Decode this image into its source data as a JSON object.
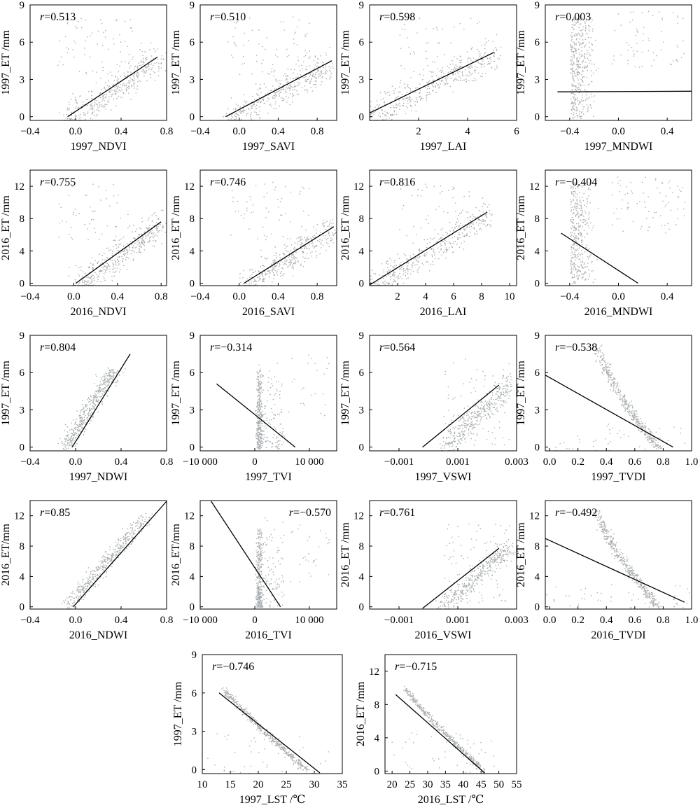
{
  "chart_data": [
    {
      "type": "scatter",
      "xlabel": "1997_NDVI",
      "ylabel": "1997_ET /mm",
      "r_label": "r",
      "r_value": "=0.513",
      "xlim": [
        -0.4,
        0.8
      ],
      "ylim": [
        -0.3,
        9
      ],
      "xticks": [
        -0.4,
        0,
        0.4,
        0.8
      ],
      "xtick_labels": [
        "−0.4",
        "0.0",
        "0.4",
        "0.8"
      ],
      "yticks": [
        0,
        3,
        6,
        9
      ],
      "ytick_labels": [
        "0",
        "3",
        "6",
        "9"
      ],
      "fit": [
        [
          -0.07,
          0
        ],
        [
          0.72,
          4.8
        ]
      ],
      "cloud": "linear-up"
    },
    {
      "type": "scatter",
      "xlabel": "1997_SAVI",
      "ylabel": "1997_ET /mm",
      "r_label": "r",
      "r_value": "=0.510",
      "xlim": [
        -0.4,
        1.0
      ],
      "ylim": [
        -0.3,
        9
      ],
      "xticks": [
        -0.4,
        0,
        0.4,
        0.8
      ],
      "xtick_labels": [
        "−0.4",
        "0.0",
        "0.4",
        "0.8"
      ],
      "yticks": [
        0,
        3,
        6,
        9
      ],
      "ytick_labels": [
        "0",
        "3",
        "6",
        "9"
      ],
      "fit": [
        [
          -0.14,
          0
        ],
        [
          0.95,
          4.5
        ]
      ],
      "cloud": "linear-up"
    },
    {
      "type": "scatter",
      "xlabel": "1997_LAI",
      "ylabel": "1997_ET /mm",
      "r_label": "r",
      "r_value": "=0.598",
      "xlim": [
        0,
        6
      ],
      "ylim": [
        -0.3,
        9
      ],
      "xticks": [
        2,
        4,
        6
      ],
      "xtick_labels": [
        "2",
        "4",
        "6"
      ],
      "yticks": [
        0,
        3,
        6,
        9
      ],
      "ytick_labels": [
        "0",
        "3",
        "6",
        "9"
      ],
      "fit": [
        [
          0,
          0.3
        ],
        [
          5.1,
          5.2
        ]
      ],
      "cloud": "linear-up"
    },
    {
      "type": "scatter",
      "xlabel": "1997_MNDWI",
      "ylabel": "1997_ET /mm",
      "r_label": "r",
      "r_value": "=0.003",
      "xlim": [
        -0.6,
        0.6
      ],
      "ylim": [
        -0.3,
        9
      ],
      "xticks": [
        -0.4,
        0,
        0.4
      ],
      "xtick_labels": [
        "−0.4",
        "0.0",
        "0.4"
      ],
      "yticks": [
        0,
        3,
        6,
        9
      ],
      "ytick_labels": [
        "0",
        "3",
        "6",
        "9"
      ],
      "fit": [
        [
          -0.5,
          2.0
        ],
        [
          0.6,
          2.05
        ]
      ],
      "cloud": "vertical-left"
    },
    {
      "type": "scatter",
      "xlabel": "2016_NDVI",
      "ylabel": "2016_ET /mm",
      "r_label": "r",
      "r_value": "=0.755",
      "xlim": [
        -0.4,
        0.85
      ],
      "ylim": [
        -0.3,
        14
      ],
      "xticks": [
        -0.4,
        0,
        0.4,
        0.8
      ],
      "xtick_labels": [
        "−0.4",
        "0.0",
        "0.4",
        "0.8"
      ],
      "yticks": [
        0,
        4,
        8,
        12
      ],
      "ytick_labels": [
        "0",
        "4",
        "8",
        "12"
      ],
      "fit": [
        [
          0.02,
          0
        ],
        [
          0.8,
          7.6
        ]
      ],
      "cloud": "linear-up"
    },
    {
      "type": "scatter",
      "xlabel": "2016_SAVI",
      "ylabel": "2016_ET /mm",
      "r_label": "r",
      "r_value": "=0.746",
      "xlim": [
        -0.4,
        1.0
      ],
      "ylim": [
        -0.3,
        14
      ],
      "xticks": [
        -0.4,
        0,
        0.4,
        0.8
      ],
      "xtick_labels": [
        "−0.4",
        "0.0",
        "0.4",
        "0.8"
      ],
      "yticks": [
        0,
        4,
        8,
        12
      ],
      "ytick_labels": [
        "0",
        "4",
        "8",
        "12"
      ],
      "fit": [
        [
          0.05,
          0
        ],
        [
          0.97,
          7.0
        ]
      ],
      "cloud": "linear-up"
    },
    {
      "type": "scatter",
      "xlabel": "2016_LAI",
      "ylabel": "2016_ET /mm",
      "r_label": "r",
      "r_value": "=0.816",
      "xlim": [
        0,
        10.5
      ],
      "ylim": [
        -0.3,
        14
      ],
      "xticks": [
        2,
        4,
        6,
        8,
        10
      ],
      "xtick_labels": [
        "2",
        "4",
        "6",
        "8",
        "10"
      ],
      "yticks": [
        0,
        4,
        8,
        12
      ],
      "ytick_labels": [
        "0",
        "4",
        "8",
        "12"
      ],
      "fit": [
        [
          0,
          -0.3
        ],
        [
          8.4,
          8.8
        ]
      ],
      "cloud": "linear-up"
    },
    {
      "type": "scatter",
      "xlabel": "2016_MNDWI",
      "ylabel": "2016_ET /mm",
      "r_label": "r",
      "r_value": "=−0.404",
      "xlim": [
        -0.6,
        0.6
      ],
      "ylim": [
        -0.3,
        14
      ],
      "xticks": [
        -0.4,
        0,
        0.4
      ],
      "xtick_labels": [
        "−0.4",
        "0.0",
        "0.4"
      ],
      "yticks": [
        0,
        4,
        8,
        12
      ],
      "ytick_labels": [
        "0",
        "4",
        "8",
        "12"
      ],
      "fit": [
        [
          -0.47,
          6.2
        ],
        [
          0.16,
          0
        ]
      ],
      "cloud": "vertical-left"
    },
    {
      "type": "scatter",
      "xlabel": "1997_NDWI",
      "ylabel": "1997_ET /mm",
      "r_label": "r",
      "r_value": "=0.804",
      "xlim": [
        -0.4,
        0.8
      ],
      "ylim": [
        -0.3,
        9
      ],
      "xticks": [
        -0.4,
        0,
        0.4,
        0.8
      ],
      "xtick_labels": [
        "−0.4",
        "0.0",
        "0.4",
        "0.8"
      ],
      "yticks": [
        0,
        3,
        6,
        9
      ],
      "ytick_labels": [
        "0",
        "3",
        "6",
        "9"
      ],
      "fit": [
        [
          -0.03,
          0
        ],
        [
          0.48,
          7.5
        ]
      ],
      "cloud": "steep-up"
    },
    {
      "type": "scatter",
      "xlabel": "1997_TVI",
      "ylabel": "1997_ET /mm",
      "r_label": "r",
      "r_value": "=−0.314",
      "xlim": [
        -10000,
        15000
      ],
      "ylim": [
        -0.3,
        9
      ],
      "xticks": [
        -10000,
        0,
        10000
      ],
      "xtick_labels": [
        "−10 000",
        "0",
        "10 000"
      ],
      "yticks": [
        0,
        3,
        6,
        9
      ],
      "ytick_labels": [
        "0",
        "3",
        "6",
        "9"
      ],
      "fit": [
        [
          -7000,
          5.1
        ],
        [
          7400,
          0
        ]
      ],
      "cloud": "spike"
    },
    {
      "type": "scatter",
      "xlabel": "1997_VSWI",
      "ylabel": "1997_ET /mm",
      "r_label": "r",
      "r_value": "=0.564",
      "xlim": [
        -0.002,
        0.003
      ],
      "ylim": [
        -0.3,
        9
      ],
      "xticks": [
        -0.001,
        0.001,
        0.003
      ],
      "xtick_labels": [
        "−0.001",
        "0.001",
        "0.003"
      ],
      "yticks": [
        0,
        3,
        6,
        9
      ],
      "ytick_labels": [
        "0",
        "3",
        "6",
        "9"
      ],
      "fit": [
        [
          -0.0002,
          0
        ],
        [
          0.0024,
          5.0
        ]
      ],
      "cloud": "wall-up"
    },
    {
      "type": "scatter",
      "xlabel": "1997_TVDI",
      "ylabel": "1997_ET /mm",
      "r_label": "r",
      "r_value": "=−0.538",
      "xlim": [
        -0.03,
        1.0
      ],
      "ylim": [
        -0.3,
        9
      ],
      "xticks": [
        0,
        0.2,
        0.4,
        0.6,
        0.8,
        1.0
      ],
      "xtick_labels": [
        "0.0",
        "0.2",
        "0.4",
        "0.6",
        "0.8",
        "1.0"
      ],
      "yticks": [
        0,
        3,
        6,
        9
      ],
      "ytick_labels": [
        "0",
        "3",
        "6",
        "9"
      ],
      "fit": [
        [
          -0.03,
          5.8
        ],
        [
          0.87,
          0
        ]
      ],
      "cloud": "curve-down"
    },
    {
      "type": "scatter",
      "xlabel": "2016_NDWI",
      "ylabel": "2016_ET/mm",
      "r_label": "r",
      "r_value": "=0.85",
      "xlim": [
        -0.4,
        0.8
      ],
      "ylim": [
        -0.3,
        14
      ],
      "xticks": [
        -0.4,
        0,
        0.4,
        0.8
      ],
      "xtick_labels": [
        "−0.4",
        "0.0",
        "0.4",
        "0.8"
      ],
      "yticks": [
        0,
        4,
        8,
        12
      ],
      "ytick_labels": [
        "0",
        "4",
        "8",
        "12"
      ],
      "fit": [
        [
          -0.02,
          0
        ],
        [
          0.8,
          14
        ]
      ],
      "cloud": "steep-up"
    },
    {
      "type": "scatter",
      "xlabel": "2016_TVI",
      "ylabel": "2016_ET/mm",
      "r_label": "r",
      "r_value": "=−0.570",
      "xlim": [
        -10000,
        15000
      ],
      "ylim": [
        -0.3,
        14
      ],
      "xticks": [
        -10000,
        0,
        10000
      ],
      "xtick_labels": [
        "−10 000",
        "0",
        "10 000"
      ],
      "yticks": [
        0,
        4,
        8,
        12
      ],
      "ytick_labels": [
        "0",
        "4",
        "8",
        "12"
      ],
      "fit": [
        [
          -8000,
          14
        ],
        [
          4700,
          0
        ]
      ],
      "cloud": "spike"
    },
    {
      "type": "scatter",
      "xlabel": "2016_VSWI",
      "ylabel": "2016_ET /mm",
      "r_label": "r",
      "r_value": "=0.761",
      "xlim": [
        -0.002,
        0.003
      ],
      "ylim": [
        -0.3,
        14
      ],
      "xticks": [
        -0.001,
        0.001,
        0.003
      ],
      "xtick_labels": [
        "−0.001",
        "0.001",
        "0.003"
      ],
      "yticks": [
        0,
        4,
        8,
        12
      ],
      "ytick_labels": [
        "0",
        "4",
        "8",
        "12"
      ],
      "fit": [
        [
          -0.0002,
          -0.3
        ],
        [
          0.0024,
          7.7
        ]
      ],
      "cloud": "wall-up"
    },
    {
      "type": "scatter",
      "xlabel": "2016_TVDI",
      "ylabel": "2016_ET /mm",
      "r_label": "r",
      "r_value": "=−0.492",
      "xlim": [
        -0.03,
        1.0
      ],
      "ylim": [
        -0.3,
        14
      ],
      "xticks": [
        0,
        0.2,
        0.4,
        0.6,
        0.8,
        1.0
      ],
      "xtick_labels": [
        "0.0",
        "0.2",
        "0.4",
        "0.6",
        "0.8",
        "1.0"
      ],
      "yticks": [
        0,
        4,
        8,
        12
      ],
      "ytick_labels": [
        "0",
        "4",
        "8",
        "12"
      ],
      "fit": [
        [
          -0.03,
          9.0
        ],
        [
          0.95,
          0.6
        ]
      ],
      "cloud": "curve-down"
    },
    {
      "type": "scatter",
      "xlabel": "1997_LST  /℃",
      "ylabel": "1997_ET /mm",
      "r_label": "r",
      "r_value": "=−0.746",
      "xlim": [
        10,
        35
      ],
      "ylim": [
        -0.3,
        9
      ],
      "xticks": [
        10,
        15,
        20,
        25,
        30,
        35
      ],
      "xtick_labels": [
        "10",
        "15",
        "20",
        "25",
        "30",
        "35"
      ],
      "yticks": [
        0,
        3,
        6,
        9
      ],
      "ytick_labels": [
        "0",
        "3",
        "6",
        "9"
      ],
      "fit": [
        [
          13,
          6.0
        ],
        [
          31,
          -0.3
        ]
      ],
      "cloud": "lst"
    },
    {
      "type": "scatter",
      "xlabel": "2016_LST /℃",
      "ylabel": "2016_ET /mm",
      "r_label": "r",
      "r_value": "=−0.715",
      "xlim": [
        18,
        55
      ],
      "ylim": [
        -0.3,
        14
      ],
      "xticks": [
        20,
        25,
        30,
        35,
        40,
        45,
        50,
        55
      ],
      "xtick_labels": [
        "20",
        "25",
        "30",
        "35",
        "40",
        "45",
        "50",
        "55"
      ],
      "yticks": [
        0,
        4,
        8,
        12
      ],
      "ytick_labels": [
        "0",
        "4",
        "8",
        "12"
      ],
      "fit": [
        [
          21,
          9.2
        ],
        [
          46,
          -0.3
        ]
      ],
      "cloud": "lst"
    }
  ]
}
